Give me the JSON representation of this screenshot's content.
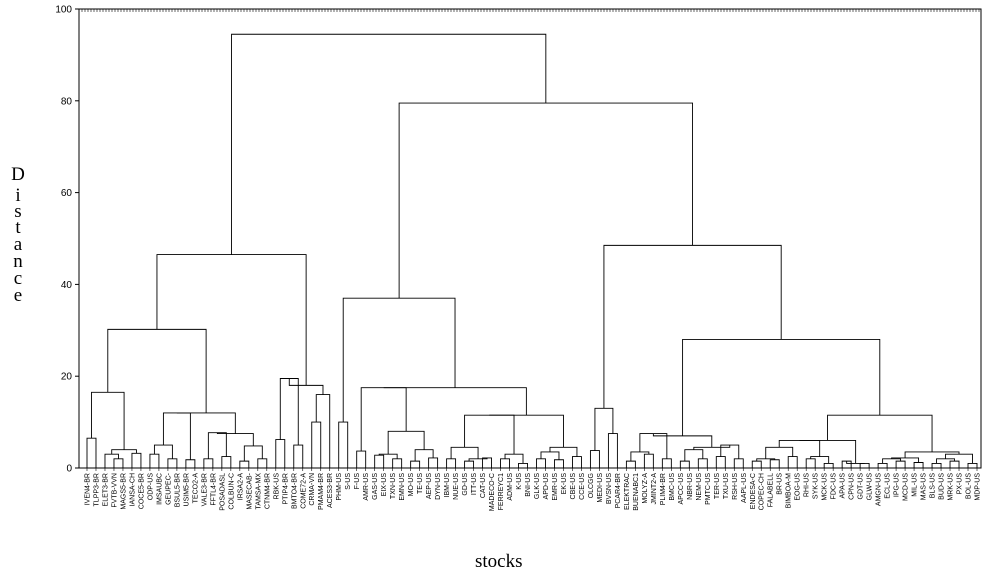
{
  "chart_data": {
    "type": "dendrogram",
    "xlabel": "stocks",
    "ylabel": "Distance",
    "ylim": [
      0,
      100
    ],
    "yticks": [
      0,
      20,
      40,
      60,
      80,
      100
    ],
    "leaves": [
      "IVEN4-BR",
      "TLPP3-BR",
      "ELET3-BR",
      "FVTB-VVN",
      "MAGS5-BR",
      "IANSA-CH",
      "COCE5-BR",
      "ODP-US",
      "IMSAUBC",
      "GEUPEC-",
      "BSUL5-BR",
      "USIM5-BR",
      "TECO2-A",
      "VALE3-BR",
      "FFTL4-BR",
      "POSADASL",
      "COLBUN-C",
      "IRSA2-A",
      "MASECAB-",
      "TAMSA-MX",
      "CTNM4-BR",
      "RBK-US",
      "PTIP4-BR",
      "BMTO4-BR",
      "COME72-A",
      "CRMA-VN",
      "PMAM4-BR",
      "ACES3-BR",
      "PHM-US",
      "S-US",
      "F-US",
      "AMR-US",
      "GAS-US",
      "EIX-US",
      "TXN-US",
      "EMN-US",
      "MO-US",
      "TE-US",
      "AEP-US",
      "DYN-US",
      "IBM-US",
      "NUE-US",
      "GD-US",
      "ITT-US",
      "CAT-US",
      "MADECO-C",
      "FERREYC1",
      "ADM-US",
      "K-US",
      "BNI-US",
      "GLK-US",
      "APD-US",
      "EMR-US",
      "EK-US",
      "CBE-US",
      "CCE-US",
      "OLCGG",
      "MEDI-US",
      "BVSN-US",
      "PCAR4-BR",
      "ELEKTRAC",
      "BUENABC1",
      "MOLYZ-A",
      "JMINT2-A",
      "PLIM4-BR",
      "BMC-US",
      "APCC-US",
      "NBR-US",
      "NEM-US",
      "PMTC-US",
      "TER-US",
      "TXU-US",
      "RSH-US",
      "AAPL-US",
      "ENDESA-C",
      "COPEC-CH",
      "FALABELL",
      "BR-US",
      "BIMBOA-M",
      "EOG-US",
      "RHI-US",
      "SYK-US",
      "MCK-US",
      "FDC-US",
      "APA-US",
      "CPN-US",
      "GDT-US",
      "GLW-US",
      "AMGN-US",
      "ECL-US",
      "IPG-US",
      "MCD-US",
      "MIL-US",
      "MAS-US",
      "BLS-US",
      "BUD-US",
      "MRK-US",
      "PX-US",
      "BOL-US",
      "MDP-US"
    ],
    "merges": [
      [
        0,
        1,
        6.5
      ],
      [
        3,
        4,
        2.0
      ],
      [
        2,
        101,
        3.0
      ],
      [
        5,
        6,
        3.2
      ],
      [
        102,
        103,
        4.0
      ],
      [
        100,
        104,
        16.5
      ],
      [
        7,
        8,
        3.0
      ],
      [
        9,
        10,
        2.0
      ],
      [
        106,
        107,
        5.0
      ],
      [
        11,
        12,
        1.8
      ],
      [
        108,
        109,
        12.0
      ],
      [
        13,
        14,
        2.0
      ],
      [
        15,
        16,
        2.5
      ],
      [
        111,
        112,
        7.7
      ],
      [
        17,
        18,
        1.5
      ],
      [
        19,
        20,
        2.0
      ],
      [
        114,
        115,
        4.8
      ],
      [
        113,
        116,
        7.5
      ],
      [
        110,
        117,
        12.0
      ],
      [
        105,
        118,
        30.2
      ],
      [
        21,
        22,
        6.2
      ],
      [
        23,
        24,
        5.0
      ],
      [
        120,
        121,
        19.5
      ],
      [
        25,
        26,
        10.0
      ],
      [
        27,
        123,
        16.0
      ],
      [
        122,
        124,
        18.0
      ],
      [
        119,
        125,
        46.5
      ],
      [
        28,
        29,
        10.0
      ],
      [
        30,
        31,
        3.7
      ],
      [
        32,
        33,
        2.8
      ],
      [
        34,
        35,
        2.0
      ],
      [
        129,
        130,
        3.0
      ],
      [
        36,
        37,
        1.5
      ],
      [
        38,
        39,
        2.2
      ],
      [
        132,
        133,
        4.0
      ],
      [
        131,
        134,
        8.0
      ],
      [
        128,
        135,
        17.5
      ],
      [
        40,
        41,
        2.0
      ],
      [
        42,
        43,
        1.5
      ],
      [
        44,
        45,
        2.2
      ],
      [
        138,
        139,
        2.0
      ],
      [
        137,
        140,
        4.5
      ],
      [
        46,
        47,
        2.0
      ],
      [
        48,
        49,
        1.0
      ],
      [
        142,
        143,
        3.0
      ],
      [
        141,
        144,
        11.5
      ],
      [
        50,
        51,
        2.0
      ],
      [
        52,
        53,
        1.8
      ],
      [
        146,
        147,
        3.5
      ],
      [
        54,
        55,
        2.5
      ],
      [
        148,
        149,
        4.5
      ],
      [
        145,
        150,
        11.5
      ],
      [
        136,
        151,
        17.5
      ],
      [
        127,
        152,
        37.0
      ],
      [
        56,
        57,
        3.8
      ],
      [
        58,
        59,
        7.5
      ],
      [
        154,
        155,
        13.0
      ],
      [
        60,
        61,
        1.5
      ],
      [
        62,
        63,
        3.0
      ],
      [
        157,
        158,
        3.5
      ],
      [
        64,
        65,
        2.0
      ],
      [
        159,
        160,
        7.5
      ],
      [
        66,
        67,
        1.5
      ],
      [
        68,
        69,
        2.0
      ],
      [
        162,
        163,
        4.0
      ],
      [
        70,
        71,
        2.5
      ],
      [
        72,
        73,
        2.0
      ],
      [
        165,
        166,
        5.0
      ],
      [
        164,
        167,
        4.5
      ],
      [
        161,
        168,
        7.0
      ],
      [
        74,
        75,
        1.5
      ],
      [
        76,
        77,
        1.8
      ],
      [
        170,
        171,
        2.0
      ],
      [
        78,
        79,
        2.5
      ],
      [
        172,
        173,
        4.5
      ],
      [
        80,
        81,
        2.0
      ],
      [
        82,
        83,
        1.0
      ],
      [
        175,
        176,
        2.5
      ],
      [
        174,
        177,
        6.0
      ],
      [
        84,
        85,
        1.5
      ],
      [
        86,
        87,
        1.0
      ],
      [
        179,
        180,
        1.0
      ],
      [
        178,
        181,
        6.0
      ],
      [
        88,
        89,
        1.0
      ],
      [
        90,
        91,
        1.5
      ],
      [
        183,
        184,
        2.0
      ],
      [
        92,
        93,
        1.2
      ],
      [
        185,
        186,
        2.2
      ],
      [
        94,
        95,
        1.0
      ],
      [
        96,
        97,
        1.5
      ],
      [
        188,
        189,
        2.0
      ],
      [
        98,
        99,
        1.0
      ],
      [
        190,
        191,
        3.0
      ],
      [
        187,
        192,
        3.5
      ],
      [
        182,
        193,
        11.5
      ],
      [
        169,
        194,
        28.0
      ],
      [
        156,
        195,
        48.5
      ],
      [
        153,
        196,
        79.5
      ],
      [
        126,
        197,
        94.5
      ]
    ]
  }
}
